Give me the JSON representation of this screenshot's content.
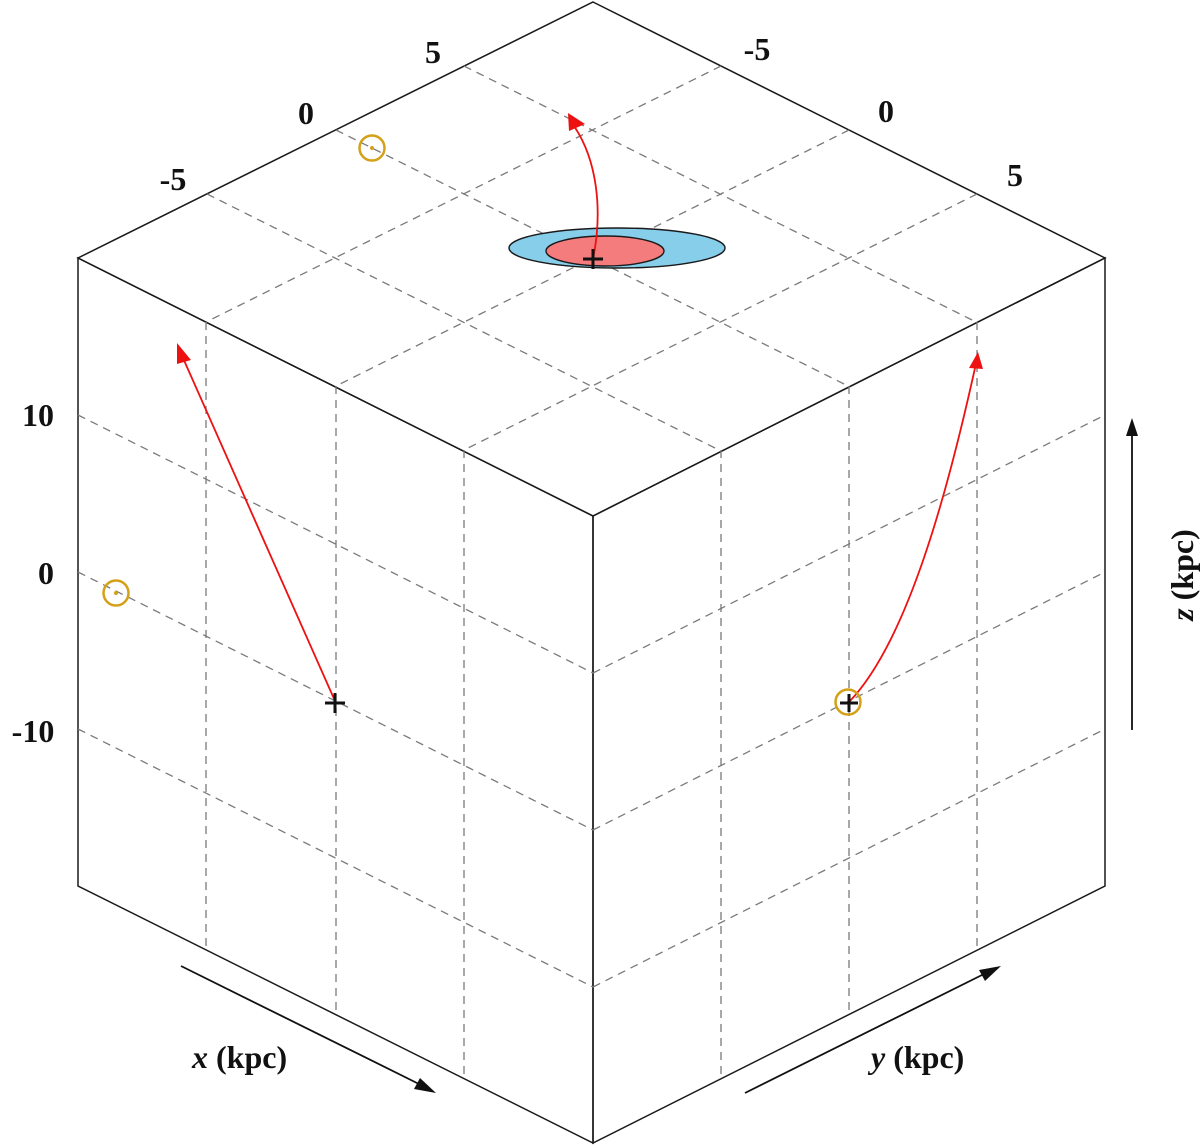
{
  "axes": {
    "x": {
      "label_var": "x",
      "label_unit": " (kpc)"
    },
    "y": {
      "label_var": "y",
      "label_unit": " (kpc)"
    },
    "z": {
      "label_var": "z",
      "label_unit": " (kpc)"
    }
  },
  "ticks": {
    "top_x": [
      "-5",
      "0",
      "5"
    ],
    "top_y": [
      "-5",
      "0",
      "5"
    ],
    "z": [
      "10",
      "0",
      "-10"
    ]
  },
  "colors": {
    "trajectory": "#ee1111",
    "sun_symbol": "#d4a017",
    "outer_contour": "#87ceeb",
    "inner_contour": "#f47c7c"
  },
  "markers": {
    "current_position": "cross",
    "sun": "sun-symbol-icon"
  }
}
